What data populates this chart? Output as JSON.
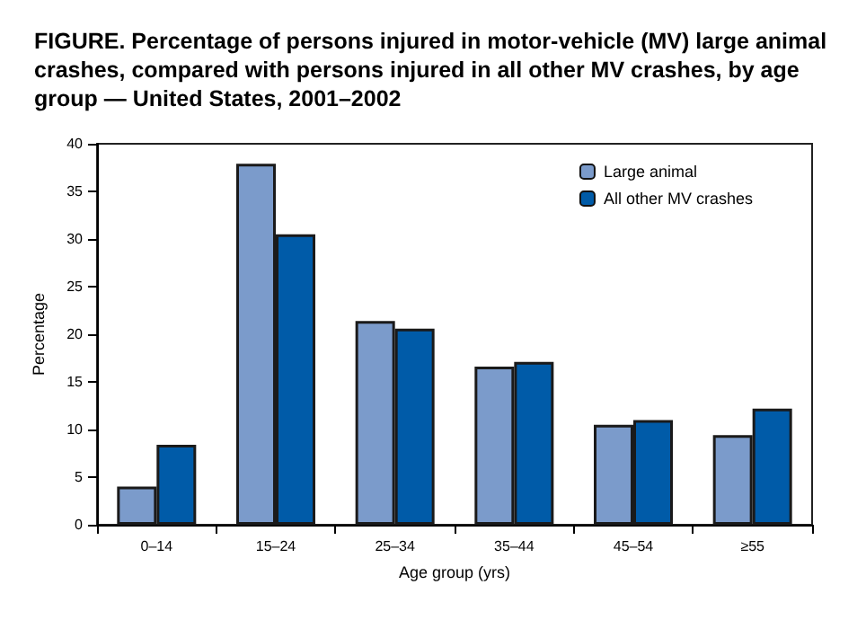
{
  "chart_data": {
    "type": "bar",
    "title": "FIGURE. Percentage of persons injured in motor-vehicle (MV) large animal crashes, compared with persons injured in all other MV crashes, by age group — United States, 2001–2002",
    "xlabel": "Age group (yrs)",
    "ylabel": "Percentage",
    "categories": [
      "0–14",
      "15–24",
      "25–34",
      "35–44",
      "45–54",
      "≥55"
    ],
    "series": [
      {
        "name": "Large animal",
        "color": "#7b9bcb",
        "values": [
          4.0,
          37.9,
          21.4,
          16.6,
          10.5,
          9.4
        ]
      },
      {
        "name": "All other MV crashes",
        "color": "#005ba8",
        "values": [
          8.4,
          30.5,
          20.6,
          17.1,
          11.0,
          12.2
        ]
      }
    ],
    "ylim": [
      0,
      40
    ],
    "yticks": [
      0,
      5,
      10,
      15,
      20,
      25,
      30,
      35,
      40
    ],
    "grid": false,
    "legend": "top right"
  }
}
